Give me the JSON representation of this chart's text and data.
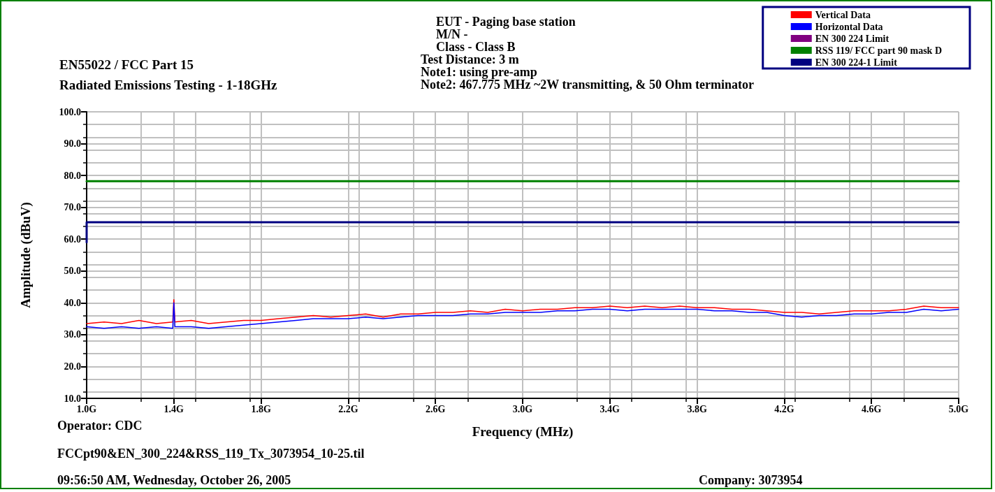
{
  "chart_data": {
    "type": "line",
    "title": "EN55022 / FCC Part 15",
    "subtitle": "Radiated Emissions Testing - 1-18GHz",
    "xlabel": "Frequency (MHz)",
    "ylabel": "Amplitude (dBuV)",
    "annotations": [
      "EUT - Paging base station",
      "M/N -",
      "Class - Class B",
      "Test Distance: 3 m",
      "Note1: using pre-amp",
      "Note2: 467.775 MHz ~2W transmitting, & 50 Ohm terminator",
      "Operator: CDC",
      "FCCpt90&EN_300_224&RSS_119_Tx_3073954_10-25.til",
      "09:56:50 AM, Wednesday, October 26, 2005",
      "Company: 3073954"
    ],
    "xlim": [
      1.0,
      5.0
    ],
    "xticks": [
      {
        "value": 1.0,
        "label": "1.0G"
      },
      {
        "value": 1.4,
        "label": "1.4G"
      },
      {
        "value": 1.8,
        "label": "1.8G"
      },
      {
        "value": 2.2,
        "label": "2.2G"
      },
      {
        "value": 2.6,
        "label": "2.6G"
      },
      {
        "value": 3.0,
        "label": "3.0G"
      },
      {
        "value": 3.4,
        "label": "3.4G"
      },
      {
        "value": 3.8,
        "label": "3.8G"
      },
      {
        "value": 4.2,
        "label": "4.2G"
      },
      {
        "value": 4.6,
        "label": "4.6G"
      },
      {
        "value": 5.0,
        "label": "5.0G"
      }
    ],
    "ylim": [
      10,
      100
    ],
    "yticks": [
      {
        "value": 10,
        "label": "10.0"
      },
      {
        "value": 20,
        "label": "20.0"
      },
      {
        "value": 30,
        "label": "30.0"
      },
      {
        "value": 40,
        "label": "40.0"
      },
      {
        "value": 50,
        "label": "50.0"
      },
      {
        "value": 60,
        "label": "60.0"
      },
      {
        "value": 70,
        "label": "70.0"
      },
      {
        "value": 80,
        "label": "80.0"
      },
      {
        "value": 90,
        "label": "90.0"
      },
      {
        "value": 100,
        "label": "100.0"
      }
    ],
    "grid": true,
    "legend": "top right",
    "marker": "none",
    "line_style": "solid",
    "series": [
      {
        "name": "Vertical Data",
        "color": "#ff0000",
        "x": [
          1.0,
          1.08,
          1.16,
          1.24,
          1.32,
          1.395,
          1.4,
          1.405,
          1.48,
          1.56,
          1.64,
          1.72,
          1.8,
          1.88,
          1.96,
          2.04,
          2.12,
          2.2,
          2.28,
          2.36,
          2.44,
          2.52,
          2.6,
          2.68,
          2.76,
          2.84,
          2.92,
          3.0,
          3.08,
          3.16,
          3.24,
          3.32,
          3.4,
          3.48,
          3.56,
          3.64,
          3.72,
          3.8,
          3.88,
          3.96,
          4.04,
          4.12,
          4.2,
          4.28,
          4.36,
          4.44,
          4.52,
          4.6,
          4.68,
          4.76,
          4.84,
          4.92,
          5.0
        ],
        "values": [
          33.5,
          34,
          33.5,
          34.5,
          33.5,
          34,
          41,
          34,
          34.5,
          33.5,
          34,
          34.5,
          34.5,
          35,
          35.5,
          36,
          35.5,
          36,
          36.5,
          35.5,
          36.5,
          36.5,
          37,
          37,
          37.5,
          37,
          38,
          37.5,
          38,
          38,
          38.5,
          38.5,
          39,
          38.5,
          39,
          38.5,
          39,
          38.5,
          38.5,
          38,
          38,
          37.5,
          37,
          37,
          36.5,
          37,
          37.5,
          37.5,
          37.5,
          38,
          39,
          38.5,
          38.5
        ]
      },
      {
        "name": "Horizontal Data",
        "color": "#0000ff",
        "x": [
          1.0,
          1.08,
          1.16,
          1.24,
          1.32,
          1.395,
          1.4,
          1.405,
          1.48,
          1.56,
          1.64,
          1.72,
          1.8,
          1.88,
          1.96,
          2.04,
          2.12,
          2.2,
          2.28,
          2.36,
          2.44,
          2.52,
          2.6,
          2.68,
          2.76,
          2.84,
          2.92,
          3.0,
          3.08,
          3.16,
          3.24,
          3.32,
          3.4,
          3.48,
          3.56,
          3.64,
          3.72,
          3.8,
          3.88,
          3.96,
          4.04,
          4.12,
          4.2,
          4.28,
          4.36,
          4.44,
          4.52,
          4.6,
          4.68,
          4.76,
          4.84,
          4.92,
          5.0
        ],
        "values": [
          32.5,
          32,
          32.5,
          32,
          32.5,
          32,
          40,
          32.5,
          32.5,
          32,
          32.5,
          33,
          33.5,
          34,
          34.5,
          35,
          35,
          35,
          35.5,
          35,
          35.5,
          36,
          36,
          36,
          36.5,
          36.5,
          37,
          37,
          37,
          37.5,
          37.5,
          38,
          38,
          37.5,
          38,
          38,
          38,
          38,
          37.5,
          37.5,
          37,
          37,
          36,
          35.5,
          36,
          36,
          36.5,
          36.5,
          37,
          37,
          38,
          37.5,
          38
        ]
      },
      {
        "name": "EN 300 224 Limit",
        "color": "#800080"
      },
      {
        "name": "RSS 119/ FCC part 90 mask D",
        "color": "#008000",
        "x": [
          1.0,
          5.0
        ],
        "values": [
          78.2,
          78.2
        ]
      },
      {
        "name": "EN 300 224-1 Limit",
        "color": "#000080",
        "x": [
          1.0,
          1.0,
          5.0
        ],
        "values": [
          59,
          65.3,
          65.3
        ]
      }
    ]
  }
}
